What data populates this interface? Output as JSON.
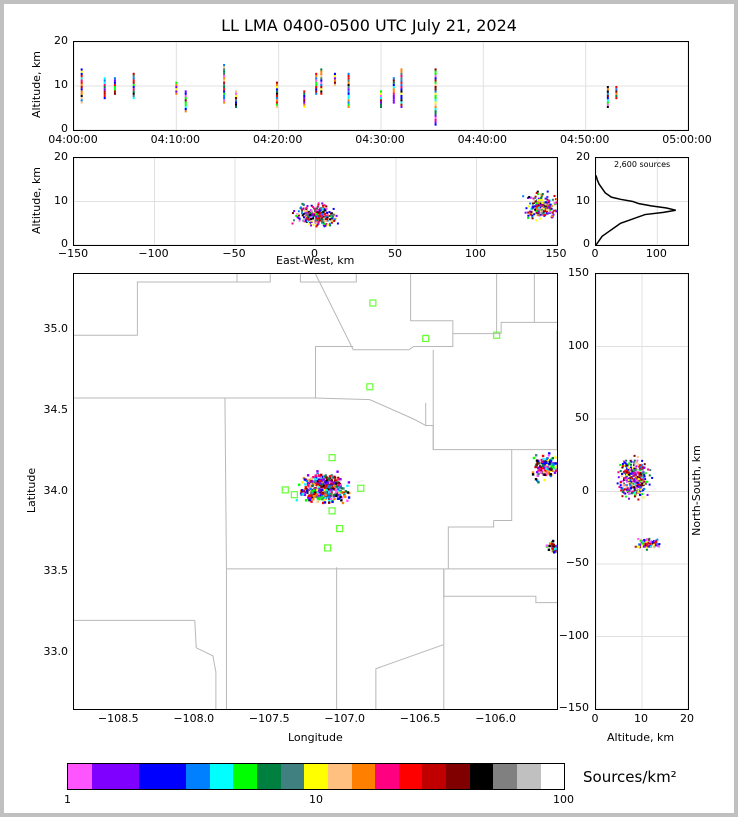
{
  "title": "LL LMA 0400-0500 UTC July 21, 2024",
  "chart_data": [
    {
      "type": "scatter",
      "panel": "altitude-time",
      "xlim": [
        "04:00:00",
        "05:00:00"
      ],
      "ylim": [
        0,
        20
      ],
      "xticks": [
        "04:00:00",
        "04:10:00",
        "04:20:00",
        "04:30:00",
        "04:40:00",
        "04:50:00",
        "05:00:00"
      ],
      "yticks": [
        0,
        10,
        20
      ],
      "ylabel": "Altitude, km",
      "grid": true,
      "columns": [
        {
          "t": "04:00:45",
          "lo": 6,
          "hi": 14
        },
        {
          "t": "04:03:00",
          "lo": 7,
          "hi": 12
        },
        {
          "t": "04:04:00",
          "lo": 8,
          "hi": 12
        },
        {
          "t": "04:05:50",
          "lo": 7,
          "hi": 13
        },
        {
          "t": "04:10:00",
          "lo": 8,
          "hi": 11
        },
        {
          "t": "04:10:55",
          "lo": 4,
          "hi": 9
        },
        {
          "t": "04:14:40",
          "lo": 6,
          "hi": 15
        },
        {
          "t": "04:15:50",
          "lo": 5,
          "hi": 9
        },
        {
          "t": "04:19:50",
          "lo": 5,
          "hi": 11
        },
        {
          "t": "04:22:30",
          "lo": 5,
          "hi": 9
        },
        {
          "t": "04:23:40",
          "lo": 8,
          "hi": 13
        },
        {
          "t": "04:24:10",
          "lo": 8,
          "hi": 14
        },
        {
          "t": "04:25:30",
          "lo": 10,
          "hi": 13
        },
        {
          "t": "04:26:50",
          "lo": 5,
          "hi": 13
        },
        {
          "t": "04:30:00",
          "lo": 5,
          "hi": 9
        },
        {
          "t": "04:31:15",
          "lo": 6,
          "hi": 12
        },
        {
          "t": "04:32:00",
          "lo": 5,
          "hi": 14
        },
        {
          "t": "04:35:20",
          "lo": 1,
          "hi": 14
        },
        {
          "t": "04:52:10",
          "lo": 5,
          "hi": 10
        },
        {
          "t": "04:53:00",
          "lo": 7,
          "hi": 10
        }
      ]
    },
    {
      "type": "scatter",
      "panel": "altitude-east-west",
      "xlim": [
        -150,
        150
      ],
      "ylim": [
        0,
        20
      ],
      "xticks": [
        -150,
        -100,
        -50,
        0,
        50,
        100,
        150
      ],
      "yticks": [
        0,
        10,
        20
      ],
      "xlabel": "East-West, km",
      "ylabel": "Altitude, km",
      "grid": true,
      "clusters": [
        {
          "x": 0,
          "y": 7,
          "sx": 10,
          "sy": 1.8,
          "n": 320
        },
        {
          "x": 140,
          "y": 9,
          "sx": 8,
          "sy": 2.5,
          "n": 220
        }
      ]
    },
    {
      "type": "line",
      "panel": "altitude-histogram",
      "xlim": [
        0,
        150
      ],
      "ylim": [
        0,
        20
      ],
      "xticks": [
        0,
        100
      ],
      "yticks": [
        0,
        10,
        20
      ],
      "annotation": "2,600 sources",
      "x": [
        0,
        10,
        20,
        30,
        40,
        60,
        80,
        110,
        130,
        115,
        90,
        70,
        60,
        40,
        25,
        15,
        10,
        5,
        2,
        0
      ],
      "y": [
        0,
        2,
        3,
        4,
        5,
        6,
        7,
        7.5,
        8,
        8.5,
        9,
        9.5,
        10,
        10.5,
        11,
        12,
        13,
        14,
        15,
        16
      ]
    },
    {
      "type": "scatter",
      "panel": "plan-view",
      "xlim": [
        -108.8,
        -105.6
      ],
      "ylim": [
        32.65,
        35.35
      ],
      "xticks": [
        "−108.5",
        "−108.0",
        "−107.5",
        "−107.0",
        "−106.5",
        "−106.0"
      ],
      "yticks": [
        "33.0",
        "33.5",
        "34.0",
        "34.5",
        "35.0"
      ],
      "xlabel": "Longitude",
      "ylabel": "Latitude",
      "stations": [
        {
          "lon": -106.82,
          "lat": 35.17
        },
        {
          "lon": -106.47,
          "lat": 34.95
        },
        {
          "lon": -106.0,
          "lat": 34.97
        },
        {
          "lon": -106.84,
          "lat": 34.65
        },
        {
          "lon": -107.09,
          "lat": 34.21
        },
        {
          "lon": -107.4,
          "lat": 34.01
        },
        {
          "lon": -107.34,
          "lat": 33.98
        },
        {
          "lon": -106.9,
          "lat": 34.02
        },
        {
          "lon": -107.09,
          "lat": 33.88
        },
        {
          "lon": -107.04,
          "lat": 33.77
        },
        {
          "lon": -107.12,
          "lat": 33.65
        }
      ],
      "clusters": [
        {
          "lon": -107.15,
          "lat": 34.03,
          "sx": 0.12,
          "sy": 0.07,
          "n": 420
        },
        {
          "lon": -105.68,
          "lat": 34.16,
          "sx": 0.08,
          "sy": 0.06,
          "n": 160
        },
        {
          "lon": -105.62,
          "lat": 33.66,
          "sx": 0.04,
          "sy": 0.03,
          "n": 50
        }
      ]
    },
    {
      "type": "scatter",
      "panel": "north-south-altitude",
      "xlim": [
        0,
        20
      ],
      "ylim": [
        -150,
        150
      ],
      "xticks": [
        0,
        10,
        20
      ],
      "yticks": [
        150,
        100,
        50,
        0,
        -50,
        -100,
        -150
      ],
      "xlabel": "Altitude, km",
      "ylabel": "North-South, km",
      "grid": true,
      "clusters": [
        {
          "x": 8,
          "y": 10,
          "sx": 2.5,
          "sy": 11,
          "n": 360
        },
        {
          "x": 11,
          "y": -35,
          "sx": 2,
          "sy": 3,
          "n": 100
        }
      ]
    }
  ],
  "colorbar": {
    "label": "Sources/km²",
    "ticks": [
      "1",
      "10",
      "100"
    ],
    "colors": [
      "#ff55ff",
      "#8000ff",
      "#8000ff",
      "#0000ff",
      "#0000ff",
      "#0080ff",
      "#00ffff",
      "#00ff00",
      "#008040",
      "#408080",
      "#ffff00",
      "#ffc080",
      "#ff8000",
      "#ff0080",
      "#ff0000",
      "#c00000",
      "#800000",
      "#000000",
      "#808080",
      "#c0c0c0",
      "#ffffff"
    ]
  }
}
